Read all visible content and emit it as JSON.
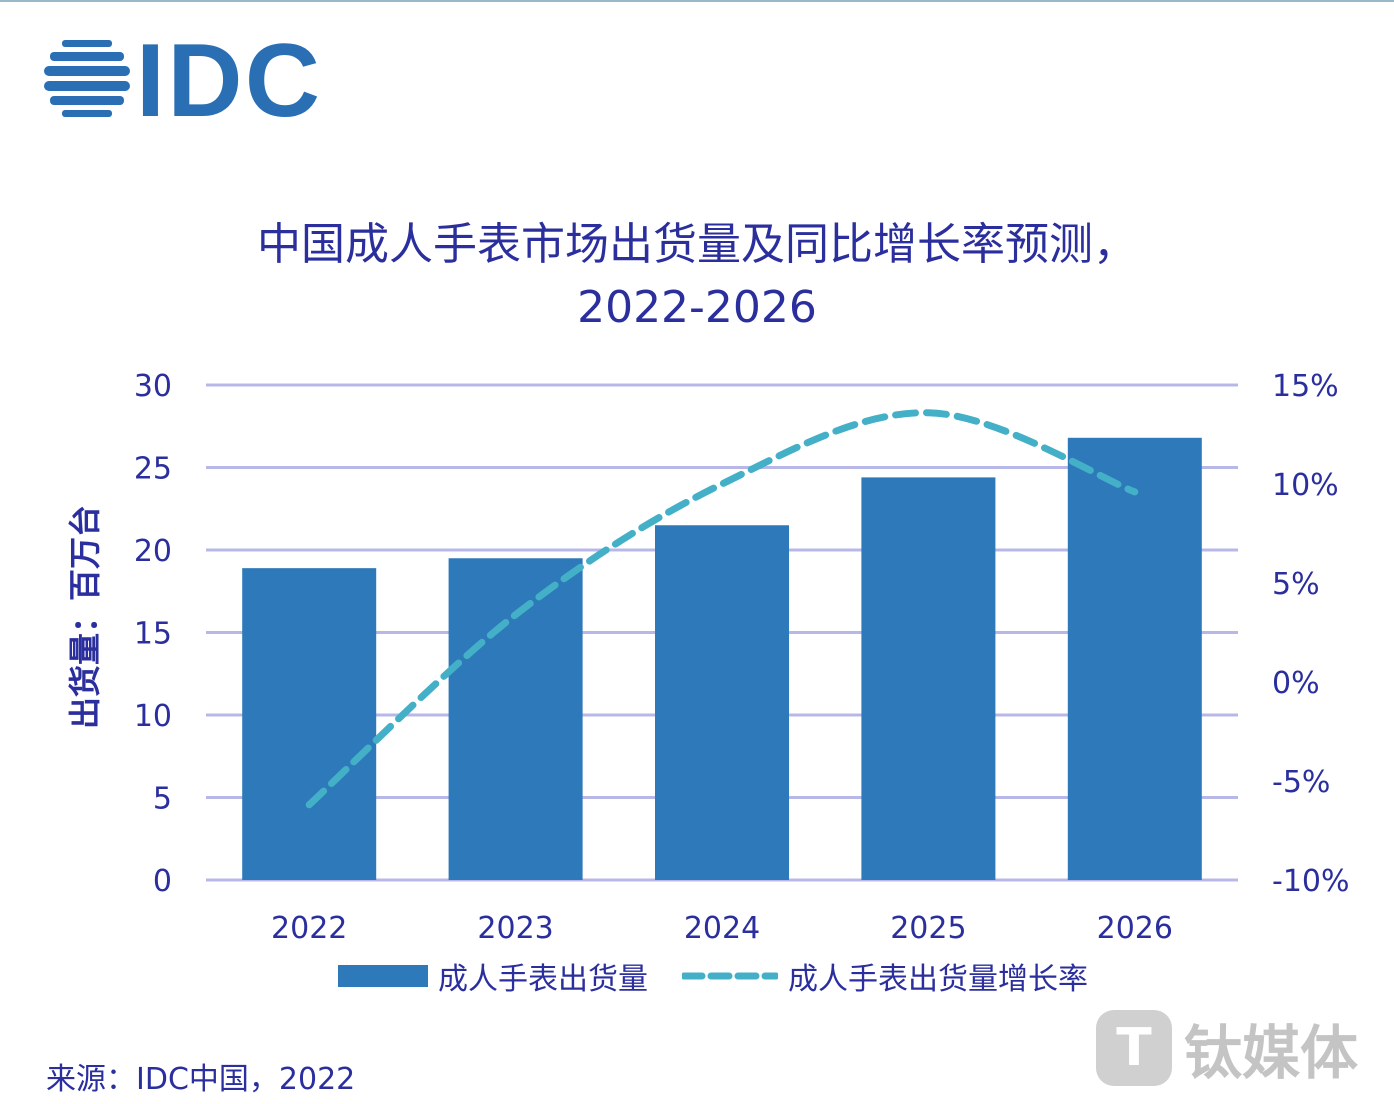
{
  "logo": {
    "text": "IDC",
    "color": "#2a6fb4"
  },
  "title_line1": "中国成人手表市场出货量及同比增长率预测，",
  "title_line2": "2022-2026",
  "source": "来源：IDC中国，2022",
  "watermark": "钛媒体",
  "chart_data": {
    "type": "bar+line",
    "categories": [
      "2022",
      "2023",
      "2024",
      "2025",
      "2026"
    ],
    "ylabel": "出货量：百万台",
    "ylim": [
      0,
      30
    ],
    "y_ticks": [
      "0",
      "5",
      "10",
      "15",
      "20",
      "25",
      "30"
    ],
    "y2lim": [
      -10,
      15
    ],
    "y2_ticks": [
      "-10%",
      "-5%",
      "0%",
      "5%",
      "10%",
      "15%"
    ],
    "grid": true,
    "legend_placement": "bottom",
    "series": [
      {
        "name": "成人手表出货量",
        "type": "bar",
        "axis": "left",
        "color": "#2e79b9",
        "values": [
          18.9,
          19.5,
          21.5,
          24.4,
          26.8
        ]
      },
      {
        "name": "成人手表出货量增长率",
        "type": "line",
        "style": "dashed",
        "axis": "right",
        "color": "#43b0c8",
        "values": [
          -6.2,
          3.4,
          10.0,
          13.6,
          9.6
        ]
      }
    ]
  }
}
